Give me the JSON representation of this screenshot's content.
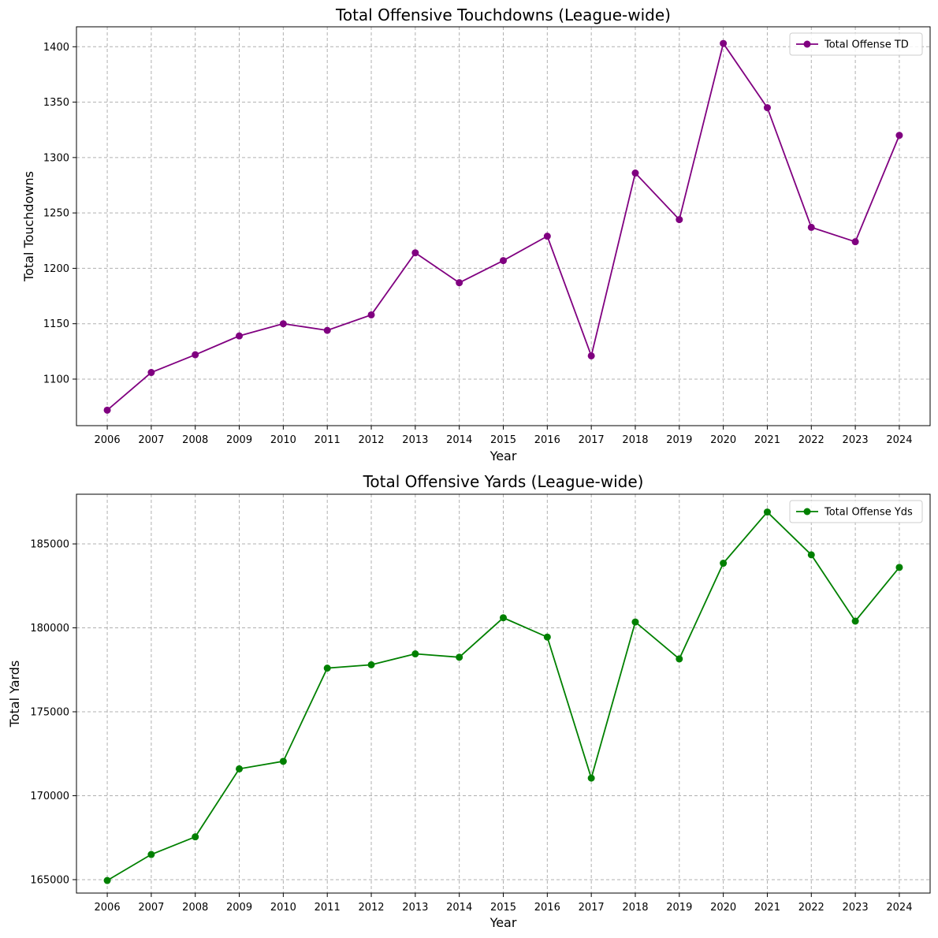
{
  "chart_data": [
    {
      "type": "line",
      "title": "Total Offensive Touchdowns (League-wide)",
      "xlabel": "Year",
      "ylabel": "Total Touchdowns",
      "x": [
        2006,
        2007,
        2008,
        2009,
        2010,
        2011,
        2012,
        2013,
        2014,
        2015,
        2016,
        2017,
        2018,
        2019,
        2020,
        2021,
        2022,
        2023,
        2024
      ],
      "series": [
        {
          "name": "Total Offense TD",
          "color": "#800080",
          "values": [
            1072,
            1106,
            1122,
            1139,
            1150,
            1144,
            1158,
            1214,
            1187,
            1207,
            1229,
            1121,
            1286,
            1244,
            1403,
            1345,
            1237,
            1224,
            1320
          ]
        }
      ],
      "ylim": [
        1058,
        1418
      ],
      "yticks": [
        1100,
        1150,
        1200,
        1250,
        1300,
        1350,
        1400
      ],
      "grid": true,
      "legend": "upper right"
    },
    {
      "type": "line",
      "title": "Total Offensive Yards (League-wide)",
      "xlabel": "Year",
      "ylabel": "Total Yards",
      "x": [
        2006,
        2007,
        2008,
        2009,
        2010,
        2011,
        2012,
        2013,
        2014,
        2015,
        2016,
        2017,
        2018,
        2019,
        2020,
        2021,
        2022,
        2023,
        2024
      ],
      "series": [
        {
          "name": "Total Offense Yds",
          "color": "#008000",
          "values": [
            164950,
            166500,
            167550,
            171600,
            172050,
            177600,
            177800,
            178450,
            178250,
            180600,
            179450,
            171050,
            180350,
            178150,
            183850,
            186900,
            184350,
            180400,
            183600
          ]
        }
      ],
      "ylim": [
        164200,
        187960
      ],
      "yticks": [
        165000,
        170000,
        175000,
        180000,
        185000
      ],
      "grid": true,
      "legend": "upper right"
    }
  ]
}
